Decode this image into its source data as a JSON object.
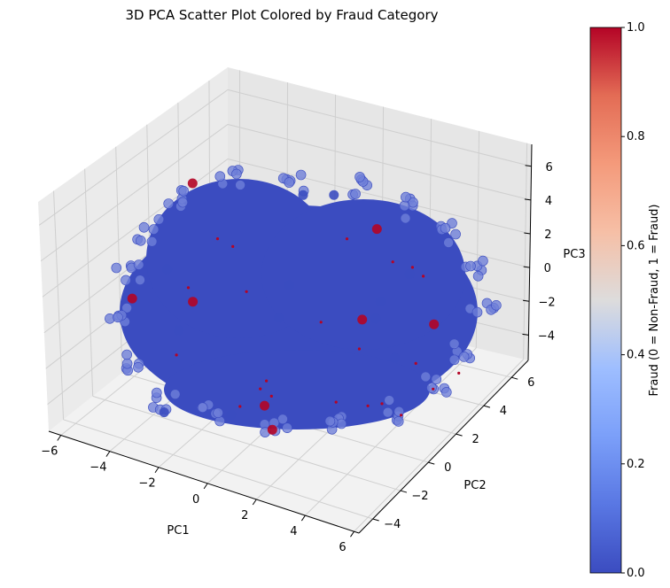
{
  "chart_data": {
    "type": "scatter",
    "projection": "3d",
    "title": "3D PCA Scatter Plot Colored by Fraud Category",
    "xlabel": "PC1",
    "ylabel": "PC2",
    "zlabel": "PC3",
    "xlim": [
      -6.5,
      6.2
    ],
    "ylim": [
      -5,
      7.2
    ],
    "zlim": [
      -5.5,
      7.3
    ],
    "xticks": [
      -6,
      -4,
      -2,
      0,
      2,
      4,
      6
    ],
    "yticks": [
      -4,
      -2,
      0,
      2,
      4,
      6
    ],
    "zticks": [
      -4,
      -2,
      0,
      2,
      4,
      6
    ],
    "grid": true,
    "colormap": "coolwarm",
    "colorbar": {
      "label": "Fraud (0 = Non-Fraud, 1 = Fraud)",
      "min": 0,
      "max": 1,
      "ticks": [
        "0.0",
        "0.2",
        "0.4",
        "0.6",
        "0.8",
        "1.0"
      ]
    },
    "series": [
      {
        "category": 0,
        "color": "#3b4cc0",
        "distribution": "dense cloud centered near origin, spread about -5 to 5 in PC1, -4 to 6 in PC2, -4 to 6 in PC3",
        "points": [
          [
            0.0,
            0.0,
            0.0
          ],
          [
            -3.8,
            -1.2,
            2.1
          ],
          [
            3.9,
            1.5,
            -1.8
          ],
          [
            -1.5,
            4.2,
            3.6
          ],
          [
            2.2,
            -3.1,
            4.4
          ],
          [
            -4.6,
            0.8,
            -2.9
          ],
          [
            4.4,
            -0.5,
            2.7
          ],
          [
            1.0,
            5.1,
            -3.2
          ],
          [
            -2.7,
            -3.4,
            -3.9
          ],
          [
            0.6,
            2.8,
            5.2
          ],
          [
            -0.9,
            -1.8,
            -4.4
          ],
          [
            3.1,
            3.9,
            0.9
          ]
        ]
      },
      {
        "category": 1,
        "color": "#b40426",
        "distribution": "sparse points scattered within the cloud",
        "points": [
          [
            -4.0,
            0.9,
            5.5
          ],
          [
            -5.0,
            -1.6,
            0.3
          ],
          [
            -2.9,
            -1.0,
            0.5
          ],
          [
            1.5,
            3.3,
            -1.8
          ],
          [
            1.2,
            -2.5,
            -3.9
          ],
          [
            0.0,
            -1.0,
            -4.1
          ],
          [
            1.2,
            4.8,
            2.2
          ],
          [
            4.3,
            3.6,
            -1.3
          ]
        ]
      }
    ]
  }
}
